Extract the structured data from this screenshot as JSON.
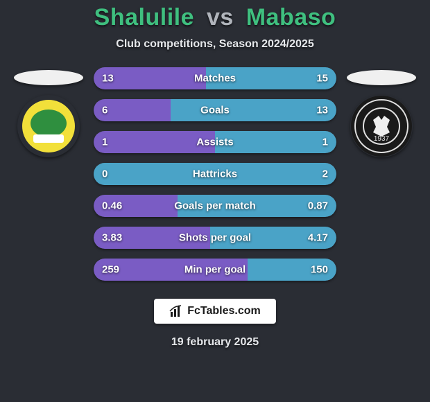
{
  "title": {
    "player1": "Shalulile",
    "vs": "vs",
    "player2": "Mabaso"
  },
  "subtitle": "Club competitions, Season 2024/2025",
  "brand": "FcTables.com",
  "date": "19 february 2025",
  "colors": {
    "p1_bar": "#7a5cc4",
    "p2_bar": "#4aa3c7",
    "bar_bg": "#3a3e46",
    "page_bg": "#2a2d34",
    "accent_green": "#3fbf7f"
  },
  "crest_left": {
    "bg": "#f2e03a",
    "inner": "#2f8f3f"
  },
  "crest_right": {
    "bg": "#1a1a1a",
    "ring": "#e0e0e0",
    "year": "1937"
  },
  "stats": [
    {
      "label": "Matches",
      "v1": "13",
      "v2": "15",
      "pct1": 46.4,
      "pct2": 53.6
    },
    {
      "label": "Goals",
      "v1": "6",
      "v2": "13",
      "pct1": 31.6,
      "pct2": 68.4
    },
    {
      "label": "Assists",
      "v1": "1",
      "v2": "1",
      "pct1": 50.0,
      "pct2": 50.0
    },
    {
      "label": "Hattricks",
      "v1": "0",
      "v2": "2",
      "pct1": 0.0,
      "pct2": 100.0
    },
    {
      "label": "Goals per match",
      "v1": "0.46",
      "v2": "0.87",
      "pct1": 34.6,
      "pct2": 65.4
    },
    {
      "label": "Shots per goal",
      "v1": "3.83",
      "v2": "4.17",
      "pct1": 47.9,
      "pct2": 52.1
    },
    {
      "label": "Min per goal",
      "v1": "259",
      "v2": "150",
      "pct1": 63.3,
      "pct2": 36.7
    }
  ]
}
